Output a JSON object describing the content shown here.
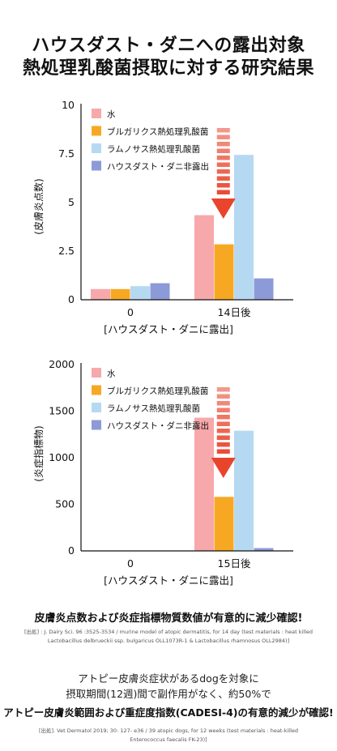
{
  "title": {
    "line1": "ハウスダスト・ダニへの露出対象",
    "line2": "熱処理乳酸菌摂取に対する研究結果"
  },
  "chart_data": [
    {
      "type": "bar",
      "ylabel": "(皮膚炎点数)",
      "xlabel": "[ハウスダスト・ダニに露出]",
      "categories": [
        "0",
        "14日後"
      ],
      "yticks": [
        "10",
        "7.5",
        "5",
        "2.5",
        "0"
      ],
      "ylim": [
        0,
        10
      ],
      "grid": false,
      "legend_position": "top-left",
      "series": [
        {
          "name": "水",
          "color": "#f7a8ab",
          "values": [
            0.55,
            4.35
          ]
        },
        {
          "name": "ブルガリクス熱処理乳酸菌",
          "color": "#f7a823",
          "values": [
            0.55,
            2.85
          ]
        },
        {
          "name": "ラムノサス熱処理乳酸菌",
          "color": "#b6d9f2",
          "values": [
            0.7,
            7.45
          ]
        },
        {
          "name": "ハウスダスト・ダニ非露出",
          "color": "#8c9ad8",
          "values": [
            0.85,
            1.1
          ]
        }
      ]
    },
    {
      "type": "bar",
      "ylabel": "(炎症指標物)",
      "xlabel": "[ハウスダスト・ダニに露出]",
      "categories": [
        "0",
        "15日後"
      ],
      "yticks": [
        "2000",
        "1500",
        "1000",
        "500",
        "0"
      ],
      "ylim": [
        0,
        2000
      ],
      "grid": false,
      "legend_position": "top-left",
      "series": [
        {
          "name": "水",
          "color": "#f7a8ab",
          "values": [
            0,
            1430
          ]
        },
        {
          "name": "ブルガリクス熱処理乳酸菌",
          "color": "#f7a823",
          "values": [
            0,
            580
          ]
        },
        {
          "name": "ラムノサス熱処理乳酸菌",
          "color": "#b6d9f2",
          "values": [
            0,
            1290
          ]
        },
        {
          "name": "ハウスダスト・ダニ非露出",
          "color": "#8c9ad8",
          "values": [
            0,
            30
          ]
        }
      ]
    }
  ],
  "arrow_color": "#e8452c",
  "findings": {
    "headline1": "皮膚炎点数および炎症指標物質数値が有意的に減少確認!",
    "source1": "[出処] : J. Dairy Sci. 96 :3525-3534 / murine model of atopic dermatitis, for 14 day (test materials : heat killed Lactobacillus delbrueckii ssp. bulgaricus OLL1073R-1 & Lactobacillus rhamnosus OLL2984)]",
    "desc1": "アトピー皮膚炎症状があるdogを対象に",
    "desc2": "摂取期間(12週)間で副作用がなく、約50%で",
    "headline2": "アトピー皮膚炎範囲および重症度指数(CADESI-4)の有意的減少が確認!",
    "source2": "[出処]. Vet Dermatol 2019; 30: 127- e36 / 39 atopic dogs, for 12 weeks (test materials : heat-killed Enterococcus faecalis FK-23)]"
  }
}
